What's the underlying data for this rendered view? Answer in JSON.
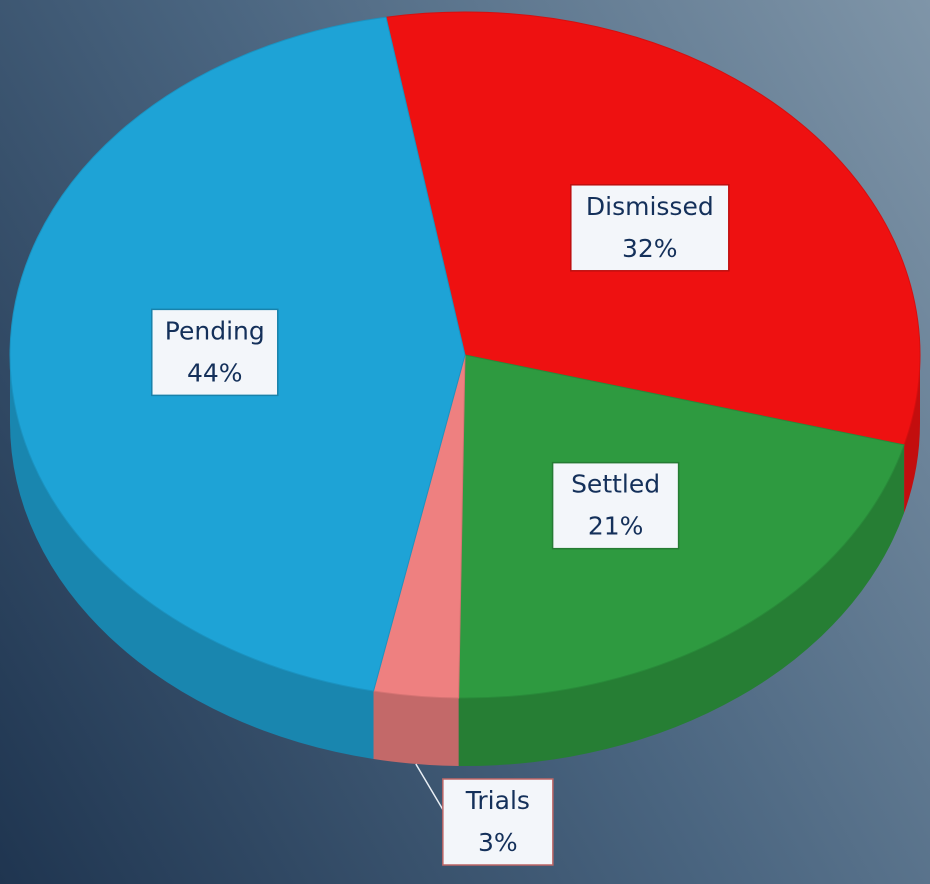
{
  "chart_data": {
    "type": "pie",
    "categories": [
      "Dismissed",
      "Settled",
      "Trials",
      "Pending"
    ],
    "values": [
      32,
      21,
      3,
      44
    ],
    "value_labels": [
      "32%",
      "21%",
      "3%",
      "44%"
    ],
    "colors": [
      "#ee1111",
      "#2e9a40",
      "#ee8080",
      "#1ea3d6"
    ]
  }
}
